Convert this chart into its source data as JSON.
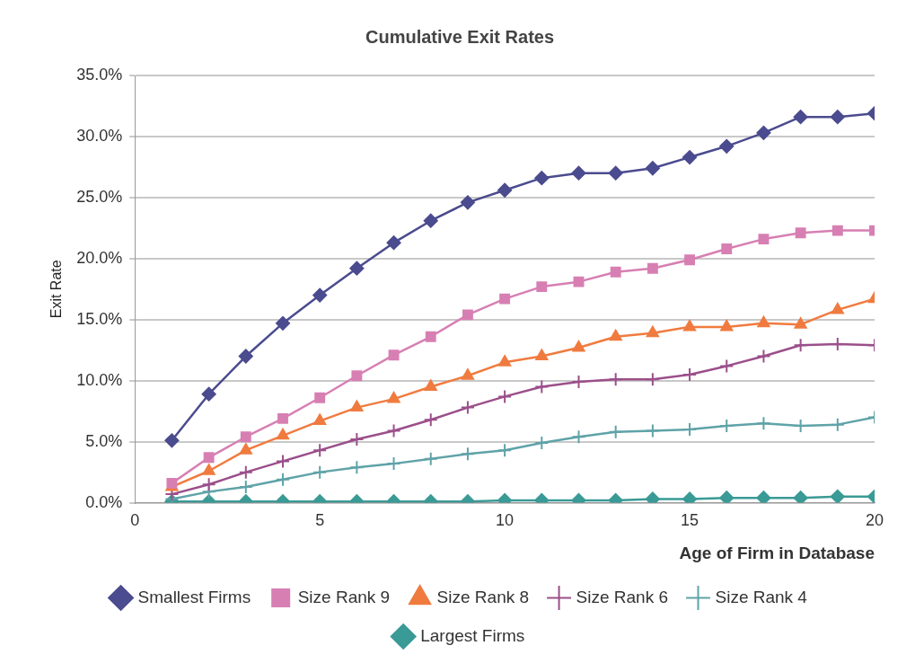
{
  "chart_data": {
    "type": "line",
    "title": "Cumulative Exit Rates",
    "xlabel": "Age of Firm in Database",
    "ylabel": "Exit Rate",
    "x": [
      1,
      2,
      3,
      4,
      5,
      6,
      7,
      8,
      9,
      10,
      11,
      12,
      13,
      14,
      15,
      16,
      17,
      18,
      19,
      20
    ],
    "xlim": [
      0,
      20
    ],
    "xticks": [
      0,
      5,
      10,
      15,
      20
    ],
    "ylim": [
      0,
      35
    ],
    "yticks": [
      {
        "value": 0,
        "label": "0.0%"
      },
      {
        "value": 5,
        "label": "5.0%"
      },
      {
        "value": 10,
        "label": "10.0%"
      },
      {
        "value": 15,
        "label": "15.0%"
      },
      {
        "value": 20,
        "label": "20.0%"
      },
      {
        "value": 25,
        "label": "25.0%"
      },
      {
        "value": 30,
        "label": "30.0%"
      },
      {
        "value": 35,
        "label": "35.0%"
      }
    ],
    "grid": "y",
    "legend": "bottom",
    "line_style": "solid",
    "series": [
      {
        "name": "Smallest Firms",
        "color": "#4b4b8f",
        "marker": "diamond",
        "values": [
          5.1,
          8.9,
          12.0,
          14.7,
          17.0,
          19.2,
          21.3,
          23.1,
          24.6,
          25.6,
          26.6,
          27.0,
          27.0,
          27.4,
          28.3,
          29.2,
          30.3,
          31.6,
          31.6,
          31.9
        ]
      },
      {
        "name": "Size Rank 9",
        "color": "#d77fb3",
        "marker": "square",
        "values": [
          1.6,
          3.7,
          5.4,
          6.9,
          8.6,
          10.4,
          12.1,
          13.6,
          15.4,
          16.7,
          17.7,
          18.1,
          18.9,
          19.2,
          19.9,
          20.8,
          21.6,
          22.1,
          22.3,
          22.3
        ]
      },
      {
        "name": "Size Rank 8",
        "color": "#f07b3f",
        "marker": "triangle",
        "values": [
          1.3,
          2.6,
          4.3,
          5.5,
          6.7,
          7.8,
          8.5,
          9.5,
          10.4,
          11.5,
          12.0,
          12.7,
          13.6,
          13.9,
          14.4,
          14.4,
          14.7,
          14.6,
          15.8,
          16.7
        ]
      },
      {
        "name": "Size Rank 6",
        "color": "#9b4f8a",
        "marker": "cross",
        "values": [
          0.7,
          1.5,
          2.5,
          3.4,
          4.3,
          5.2,
          5.9,
          6.8,
          7.8,
          8.7,
          9.5,
          9.9,
          10.1,
          10.1,
          10.5,
          11.2,
          12.0,
          12.9,
          13.0,
          12.9
        ]
      },
      {
        "name": "Size Rank 4",
        "color": "#5fa3a8",
        "marker": "cross",
        "values": [
          0.3,
          0.9,
          1.3,
          1.9,
          2.5,
          2.9,
          3.2,
          3.6,
          4.0,
          4.3,
          4.9,
          5.4,
          5.8,
          5.9,
          6.0,
          6.3,
          6.5,
          6.3,
          6.4,
          7.0
        ]
      },
      {
        "name": "Largest Firms",
        "color": "#3a9a96",
        "marker": "diamond",
        "values": [
          0.1,
          0.1,
          0.1,
          0.1,
          0.1,
          0.1,
          0.1,
          0.1,
          0.1,
          0.2,
          0.2,
          0.2,
          0.2,
          0.3,
          0.3,
          0.4,
          0.4,
          0.4,
          0.5,
          0.5
        ]
      }
    ]
  }
}
